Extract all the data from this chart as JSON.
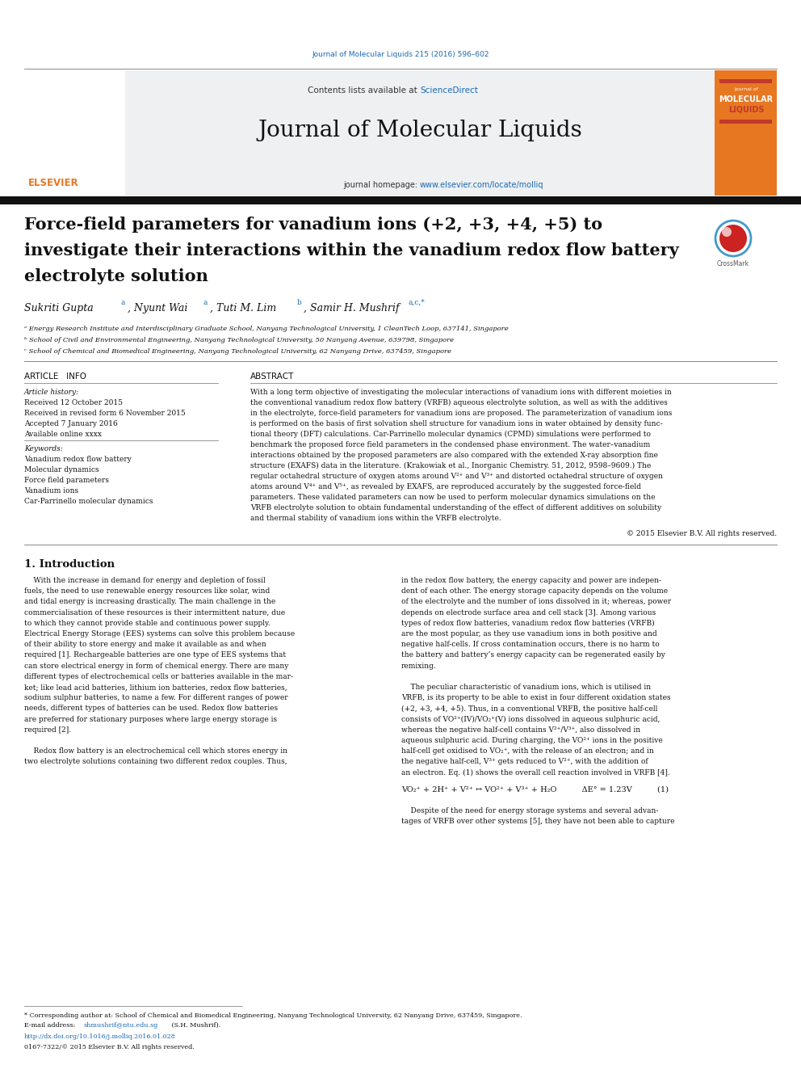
{
  "page_width": 9.92,
  "page_height": 13.23,
  "bg_color": "#ffffff",
  "journal_ref_text": "Journal of Molecular Liquids 215 (2016) 596–602",
  "journal_ref_color": "#1a6ab5",
  "header_bg": "#eef0f2",
  "header_contents": "Contents lists available at ",
  "header_sciencedirect": "ScienceDirect",
  "header_sciencedirect_color": "#1a6ab5",
  "journal_title": "Journal of Molecular Liquids",
  "journal_homepage_label": "journal homepage: ",
  "journal_homepage_url": "www.elsevier.com/locate/molliq",
  "journal_homepage_color": "#1a6ab5",
  "article_title_line1": "Force-field parameters for vanadium ions (+2, +3, +4, +5) to",
  "article_title_line2": "investigate their interactions within the vanadium redox flow battery",
  "article_title_line3": "electrolyte solution",
  "affil_a": "ᵃ Energy Research Institute and Interdisciplinary Graduate School, Nanyang Technological University, 1 CleanTech Loop, 637141, Singapore",
  "affil_b": "ᵇ School of Civil and Environmental Engineering, Nanyang Technological University, 50 Nanyang Avenue, 639798, Singapore",
  "affil_c": "ᶜ School of Chemical and Biomedical Engineering, Nanyang Technological University, 62 Nanyang Drive, 637459, Singapore",
  "section_article_info": "ARTICLE   INFO",
  "article_history_label": "Article history:",
  "received1": "Received 12 October 2015",
  "received2": "Received in revised form 6 November 2015",
  "accepted": "Accepted 7 January 2016",
  "available": "Available online xxxx",
  "keywords_label": "Keywords:",
  "keyword1": "Vanadium redox flow battery",
  "keyword2": "Molecular dynamics",
  "keyword3": "Force field parameters",
  "keyword4": "Vanadium ions",
  "keyword5": "Car-Parrinello molecular dynamics",
  "section_abstract": "ABSTRACT",
  "copyright_text": "© 2015 Elsevier B.V. All rights reserved.",
  "intro_heading": "1. Introduction",
  "equation": "VO₂⁺ + 2H⁺ + V²⁺ ↔ VO²⁺ + V³⁺ + H₂O          ΔE° = 1.23V          (1)",
  "footnote_star": "* Corresponding author at: School of Chemical and Biomedical Engineering, Nanyang Technological University, 62 Nanyang Drive, 637459, Singapore.",
  "doi_text": "http://dx.doi.org/10.1016/j.molliq.2016.01.028",
  "issn_text": "0167-7322/© 2015 Elsevier B.V. All rights reserved.",
  "elsevier_orange": "#e87722",
  "elsevier_red": "#c0392b",
  "link_color": "#1a6ab5",
  "text_color": "#111111",
  "abstract_lines": [
    "With a long term objective of investigating the molecular interactions of vanadium ions with different moieties in",
    "the conventional vanadium redox flow battery (VRFB) aqueous electrolyte solution, as well as with the additives",
    "in the electrolyte, force-field parameters for vanadium ions are proposed. The parameterization of vanadium ions",
    "is performed on the basis of first solvation shell structure for vanadium ions in water obtained by density func-",
    "tional theory (DFT) calculations. Car-Parrinello molecular dynamics (CPMD) simulations were performed to",
    "benchmark the proposed force field parameters in the condensed phase environment. The water–vanadium",
    "interactions obtained by the proposed parameters are also compared with the extended X-ray absorption fine",
    "structure (EXAFS) data in the literature. (Krakowiak et al., Inorganic Chemistry. 51, 2012, 9598–9609.) The",
    "regular octahedral structure of oxygen atoms around V²⁺ and V³⁺ and distorted octahedral structure of oxygen",
    "atoms around V⁴⁺ and V⁵⁺, as revealed by EXAFS, are reproduced accurately by the suggested force-field",
    "parameters. These validated parameters can now be used to perform molecular dynamics simulations on the",
    "VRFB electrolyte solution to obtain fundamental understanding of the effect of different additives on solubility",
    "and thermal stability of vanadium ions within the VRFB electrolyte."
  ],
  "intro_left_lines": [
    "    With the increase in demand for energy and depletion of fossil",
    "fuels, the need to use renewable energy resources like solar, wind",
    "and tidal energy is increasing drastically. The main challenge in the",
    "commercialisation of these resources is their intermittent nature, due",
    "to which they cannot provide stable and continuous power supply.",
    "Electrical Energy Storage (EES) systems can solve this problem because",
    "of their ability to store energy and make it available as and when",
    "required [1]. Rechargeable batteries are one type of EES systems that",
    "can store electrical energy in form of chemical energy. There are many",
    "different types of electrochemical cells or batteries available in the mar-",
    "ket; like lead acid batteries, lithium ion batteries, redox flow batteries,",
    "sodium sulphur batteries, to name a few. For different ranges of power",
    "needs, different types of batteries can be used. Redox flow batteries",
    "are preferred for stationary purposes where large energy storage is",
    "required [2].",
    "",
    "    Redox flow battery is an electrochemical cell which stores energy in",
    "two electrolyte solutions containing two different redox couples. Thus,"
  ],
  "intro_right_lines": [
    "in the redox flow battery, the energy capacity and power are indepen-",
    "dent of each other. The energy storage capacity depends on the volume",
    "of the electrolyte and the number of ions dissolved in it; whereas, power",
    "depends on electrode surface area and cell stack [3]. Among various",
    "types of redox flow batteries, vanadium redox flow batteries (VRFB)",
    "are the most popular, as they use vanadium ions in both positive and",
    "negative half-cells. If cross contamination occurs, there is no harm to",
    "the battery and battery’s energy capacity can be regenerated easily by",
    "remixing.",
    "",
    "    The peculiar characteristic of vanadium ions, which is utilised in",
    "VRFB, is its property to be able to exist in four different oxidation states",
    "(+2, +3, +4, +5). Thus, in a conventional VRFB, the positive half-cell",
    "consists of VO²⁺(IV)/VO₂⁺(V) ions dissolved in aqueous sulphuric acid,",
    "whereas the negative half-cell contains V²⁺/V³⁺, also dissolved in",
    "aqueous sulphuric acid. During charging, the VO²⁺ ions in the positive",
    "half-cell get oxidised to VO₂⁺, with the release of an electron; and in",
    "the negative half-cell, V³⁺ gets reduced to V²⁺, with the addition of",
    "an electron. Eq. (1) shows the overall cell reaction involved in VRFB [4]."
  ],
  "last_right_lines": [
    "    Despite of the need for energy storage systems and several advan-",
    "tages of VRFB over other systems [5], they have not been able to capture"
  ]
}
